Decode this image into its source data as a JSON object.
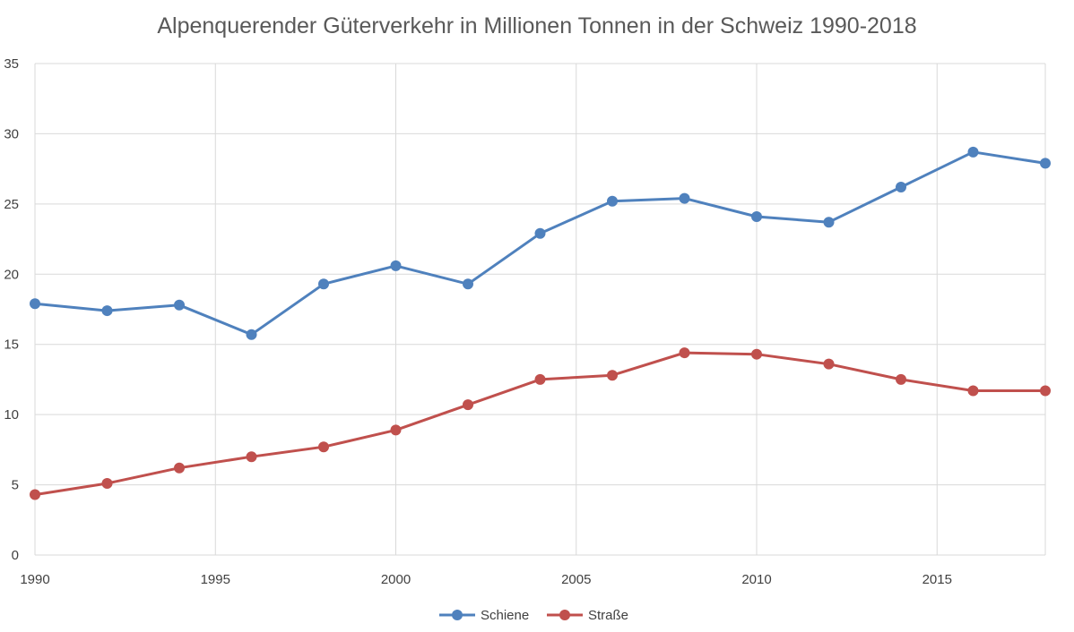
{
  "chart_data": {
    "type": "line",
    "title": "Alpenquerender Güterverkehr in Millionen Tonnen in der Schweiz 1990-2018",
    "xlabel": "",
    "ylabel": "",
    "xlim": [
      1990,
      2018
    ],
    "ylim": [
      0,
      35
    ],
    "x_ticks": [
      1990,
      1995,
      2000,
      2005,
      2010,
      2015
    ],
    "y_ticks": [
      0,
      5,
      10,
      15,
      20,
      25,
      30,
      35
    ],
    "grid": true,
    "legend_position": "bottom",
    "x": [
      1990,
      1992,
      1994,
      1996,
      1998,
      2000,
      2002,
      2004,
      2006,
      2008,
      2010,
      2012,
      2014,
      2016,
      2018
    ],
    "series": [
      {
        "name": "Schiene",
        "color": "#4f81bd",
        "values": [
          17.9,
          17.4,
          17.8,
          15.7,
          19.3,
          20.6,
          19.3,
          22.9,
          25.2,
          25.4,
          24.1,
          23.7,
          26.2,
          28.7,
          27.9
        ]
      },
      {
        "name": "Straße",
        "color": "#c0504d",
        "values": [
          4.3,
          5.1,
          6.2,
          7.0,
          7.7,
          8.9,
          10.7,
          12.5,
          12.8,
          14.4,
          14.3,
          13.6,
          12.5,
          11.7,
          11.7
        ]
      }
    ]
  }
}
